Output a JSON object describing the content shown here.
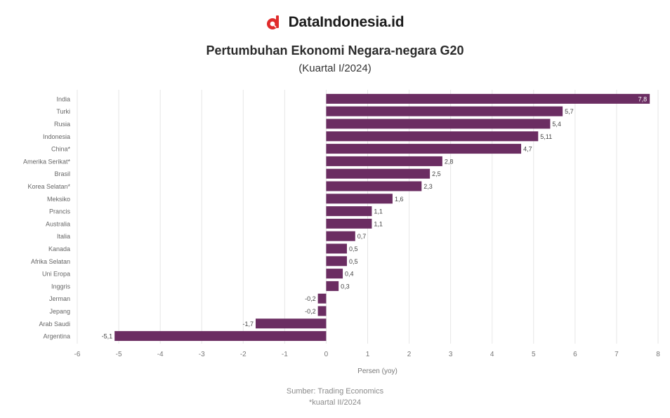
{
  "brand": {
    "name": "DataIndonesia.id"
  },
  "colors": {
    "bar": "#6b2d62",
    "brand_red": "#e02b2b",
    "grid": "#e6e6e6",
    "text_muted": "#8a8a8a"
  },
  "footer": {
    "source": "Sumber: Trading Economics",
    "note": "*kuartal II/2024"
  },
  "chart_data": {
    "type": "bar",
    "orientation": "horizontal",
    "title": "Pertumbuhan Ekonomi Negara-negara G20",
    "subtitle": "(Kuartal I/2024)",
    "xlabel": "Persen (yoy)",
    "ylabel": "",
    "xlim": [
      -6,
      8
    ],
    "xticks": [
      -6,
      -5,
      -4,
      -3,
      -2,
      -1,
      0,
      1,
      2,
      3,
      4,
      5,
      6,
      7,
      8
    ],
    "grid": true,
    "categories": [
      "India",
      "Turki",
      "Rusia",
      "Indonesia",
      "China*",
      "Amerika Serikat*",
      "Brasil",
      "Korea Selatan*",
      "Meksiko",
      "Prancis",
      "Australia",
      "Italia",
      "Kanada",
      "Afrika Selatan",
      "Uni Eropa",
      "Inggris",
      "Jerman",
      "Jepang",
      "Arab Saudi",
      "Argentina"
    ],
    "values": [
      7.8,
      5.7,
      5.4,
      5.11,
      4.7,
      2.8,
      2.5,
      2.3,
      1.6,
      1.1,
      1.1,
      0.7,
      0.5,
      0.5,
      0.4,
      0.3,
      -0.2,
      -0.2,
      -1.7,
      -5.1
    ],
    "labels": [
      "7,8",
      "5,7",
      "5,4",
      "5,11",
      "4,7",
      "2,8",
      "2,5",
      "2,3",
      "1,6",
      "1,1",
      "1,1",
      "0,7",
      "0,5",
      "0,5",
      "0,4",
      "0,3",
      "-0,2",
      "-0,2",
      "-1,7",
      "-5,1"
    ]
  }
}
